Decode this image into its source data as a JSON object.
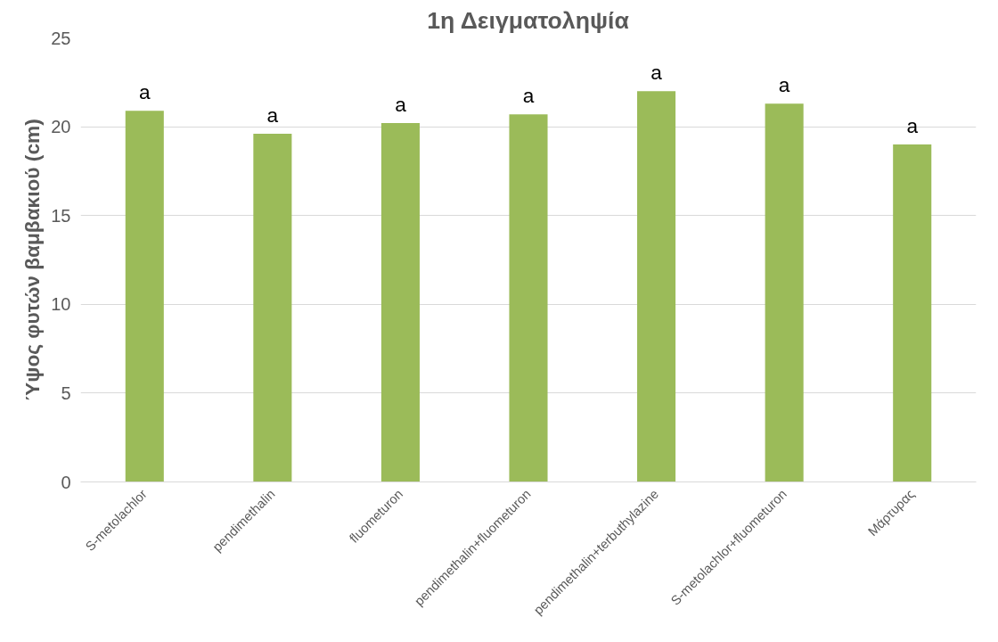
{
  "chart_data": {
    "type": "bar",
    "title": "1η Δειγματοληψία",
    "ylabel": "Ύψος φυτών βαμβακιού (cm)",
    "categories": [
      "S-metolachlor",
      "pendimethalin",
      "fluometuron",
      "pendimethalin+fluometuron",
      "pendimethalin+terbuthylazine",
      "S-metolachlor+fluometuron",
      "Μάρτυρας"
    ],
    "values": [
      20.9,
      19.6,
      20.2,
      20.7,
      22.0,
      21.3,
      19.0
    ],
    "color": "#9bbb59",
    "ylim": [
      0,
      25
    ],
    "yticks": [
      0,
      5,
      10,
      15,
      20,
      25
    ],
    "grid": "y",
    "annotations": [
      {
        "text": "a",
        "x": "S-metolachlor",
        "y": 20.9
      },
      {
        "text": "a",
        "x": "pendimethalin",
        "y": 19.6
      },
      {
        "text": "a",
        "x": "fluometuron",
        "y": 20.2
      },
      {
        "text": "a",
        "x": "pendimethalin+fluometuron",
        "y": 20.7
      },
      {
        "text": "a",
        "x": "pendimethalin+terbuthylazine",
        "y": 22.0
      },
      {
        "text": "a",
        "x": "S-metolachlor+fluometuron",
        "y": 21.3
      },
      {
        "text": "a",
        "x": "Μάρτυρας",
        "y": 19.0
      }
    ]
  }
}
